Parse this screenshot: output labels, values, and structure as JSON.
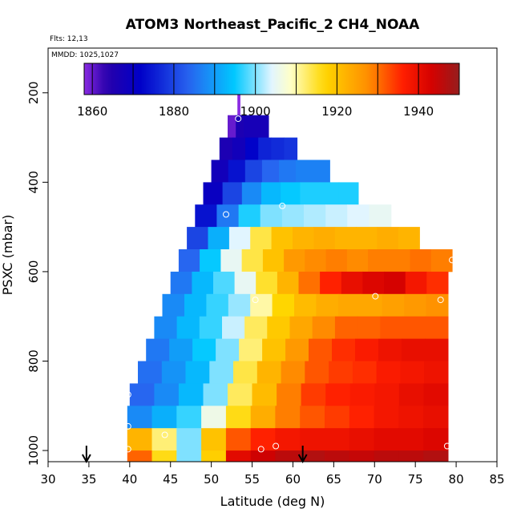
{
  "chart_data": {
    "type": "heatmap",
    "title": "ATOM3 Northeast_Pacific_2 CH4_NOAA",
    "flights_label": "Flts: 12,13",
    "dates_label": "MMDD: 1025,1027",
    "xlabel": "Latitude (deg N)",
    "ylabel": "PSXC (mbar)",
    "xlim": [
      30,
      85
    ],
    "ylim": [
      1025,
      100
    ],
    "x_ticks": [
      30,
      35,
      40,
      45,
      50,
      55,
      60,
      65,
      70,
      75,
      80,
      85
    ],
    "y_ticks": [
      200,
      400,
      600,
      800,
      1000
    ],
    "colorbar": {
      "range": [
        1858,
        1950
      ],
      "ticks": [
        1860,
        1880,
        1900,
        1920,
        1940
      ],
      "divisions": [
        1860,
        1870,
        1880,
        1890,
        1900,
        1910,
        1920,
        1930,
        1940
      ]
    },
    "arrows_lat": [
      34.7,
      61.2
    ],
    "layers": [
      {
        "p_top": 200,
        "p_bot": 250,
        "lat_start": 53.2,
        "lat_end": 53.5,
        "values": [
          1858
        ]
      },
      {
        "p_top": 250,
        "p_bot": 300,
        "lat_start": 52.0,
        "lat_end": 57.0,
        "values": [
          1860,
          1866,
          1867,
          1867,
          1867
        ]
      },
      {
        "p_top": 300,
        "p_bot": 350,
        "lat_start": 51.0,
        "lat_end": 60.5,
        "values": [
          1866,
          1868,
          1872,
          1876,
          1877,
          1878
        ]
      },
      {
        "p_top": 350,
        "p_bot": 400,
        "lat_start": 50.0,
        "lat_end": 64.5,
        "values": [
          1868,
          1874,
          1880,
          1884,
          1886,
          1887,
          1887
        ]
      },
      {
        "p_top": 400,
        "p_bot": 450,
        "lat_start": 49.0,
        "lat_end": 68.0,
        "values": [
          1870,
          1880,
          1888,
          1893,
          1895,
          1896,
          1896,
          1896
        ]
      },
      {
        "p_top": 450,
        "p_bot": 500,
        "lat_start": 48.0,
        "lat_end": 72.0,
        "values": [
          1874,
          1886,
          1896,
          1900,
          1901,
          1902,
          1903,
          1904,
          1905
        ]
      },
      {
        "p_top": 500,
        "p_bot": 550,
        "lat_start": 47.0,
        "lat_end": 75.5,
        "values": [
          1880,
          1892,
          1904,
          1914,
          1920,
          1922,
          1923,
          1922,
          1922,
          1923,
          1922
        ]
      },
      {
        "p_top": 550,
        "p_bot": 600,
        "lat_start": 46.0,
        "lat_end": 79.5,
        "values": [
          1884,
          1895,
          1905,
          1914,
          1920,
          1926,
          1928,
          1929,
          1928,
          1929,
          1929,
          1930,
          1929
        ]
      },
      {
        "p_top": 600,
        "p_bot": 650,
        "lat_start": 45.0,
        "lat_end": 79.0,
        "values": [
          1886,
          1893,
          1898,
          1905,
          1915,
          1922,
          1930,
          1936,
          1940,
          1942,
          1943,
          1938,
          1935
        ]
      },
      {
        "p_top": 650,
        "p_bot": 700,
        "lat_start": 44.0,
        "lat_end": 79.0,
        "values": [
          1888,
          1893,
          1897,
          1901,
          1910,
          1917,
          1921,
          1923,
          1924,
          1924,
          1925,
          1926,
          1927
        ]
      },
      {
        "p_top": 700,
        "p_bot": 750,
        "lat_start": 43.0,
        "lat_end": 79.0,
        "values": [
          1888,
          1893,
          1897,
          1903,
          1913,
          1919,
          1924,
          1928,
          1931,
          1931,
          1932,
          1932,
          1932
        ]
      },
      {
        "p_top": 750,
        "p_bot": 800,
        "lat_start": 42.0,
        "lat_end": 79.0,
        "values": [
          1886,
          1890,
          1895,
          1900,
          1912,
          1920,
          1926,
          1932,
          1935,
          1937,
          1939,
          1940,
          1940
        ]
      },
      {
        "p_top": 800,
        "p_bot": 850,
        "lat_start": 41.0,
        "lat_end": 79.0,
        "values": [
          1885,
          1889,
          1893,
          1900,
          1914,
          1922,
          1928,
          1932,
          1934,
          1935,
          1937,
          1938,
          1939
        ]
      },
      {
        "p_top": 850,
        "p_bot": 900,
        "lat_start": 40.0,
        "lat_end": 79.0,
        "values": [
          1884,
          1888,
          1893,
          1900,
          1913,
          1921,
          1929,
          1934,
          1936,
          1937,
          1938,
          1940,
          1941
        ]
      },
      {
        "p_top": 900,
        "p_bot": 950,
        "lat_start": 39.7,
        "lat_end": 79.0,
        "values": [
          1888,
          1892,
          1897,
          1906,
          1916,
          1923,
          1929,
          1932,
          1934,
          1936,
          1938,
          1939,
          1940
        ]
      },
      {
        "p_top": 950,
        "p_bot": 1000,
        "lat_start": 39.7,
        "lat_end": 79.0,
        "values": [
          1922,
          1912,
          1900,
          1920,
          1932,
          1936,
          1938,
          1939,
          1939,
          1940,
          1941,
          1941,
          1942
        ]
      },
      {
        "p_top": 1000,
        "p_bot": 1025,
        "lat_start": 39.7,
        "lat_end": 79.0,
        "values": [
          1931,
          1916,
          1900,
          1918,
          1941,
          1944,
          1946,
          1947,
          1946,
          1945,
          1946,
          1946,
          1947
        ]
      }
    ],
    "sample_points": [
      {
        "lat": 53.3,
        "p": 258
      },
      {
        "lat": 58.7,
        "p": 453
      },
      {
        "lat": 51.8,
        "p": 472
      },
      {
        "lat": 55.4,
        "p": 663
      },
      {
        "lat": 70.1,
        "p": 655
      },
      {
        "lat": 78.1,
        "p": 663
      },
      {
        "lat": 79.5,
        "p": 574
      },
      {
        "lat": 39.8,
        "p": 875
      },
      {
        "lat": 39.8,
        "p": 946
      },
      {
        "lat": 44.3,
        "p": 965
      },
      {
        "lat": 39.8,
        "p": 997
      },
      {
        "lat": 56.1,
        "p": 997
      },
      {
        "lat": 57.9,
        "p": 990
      },
      {
        "lat": 78.9,
        "p": 990
      }
    ]
  }
}
